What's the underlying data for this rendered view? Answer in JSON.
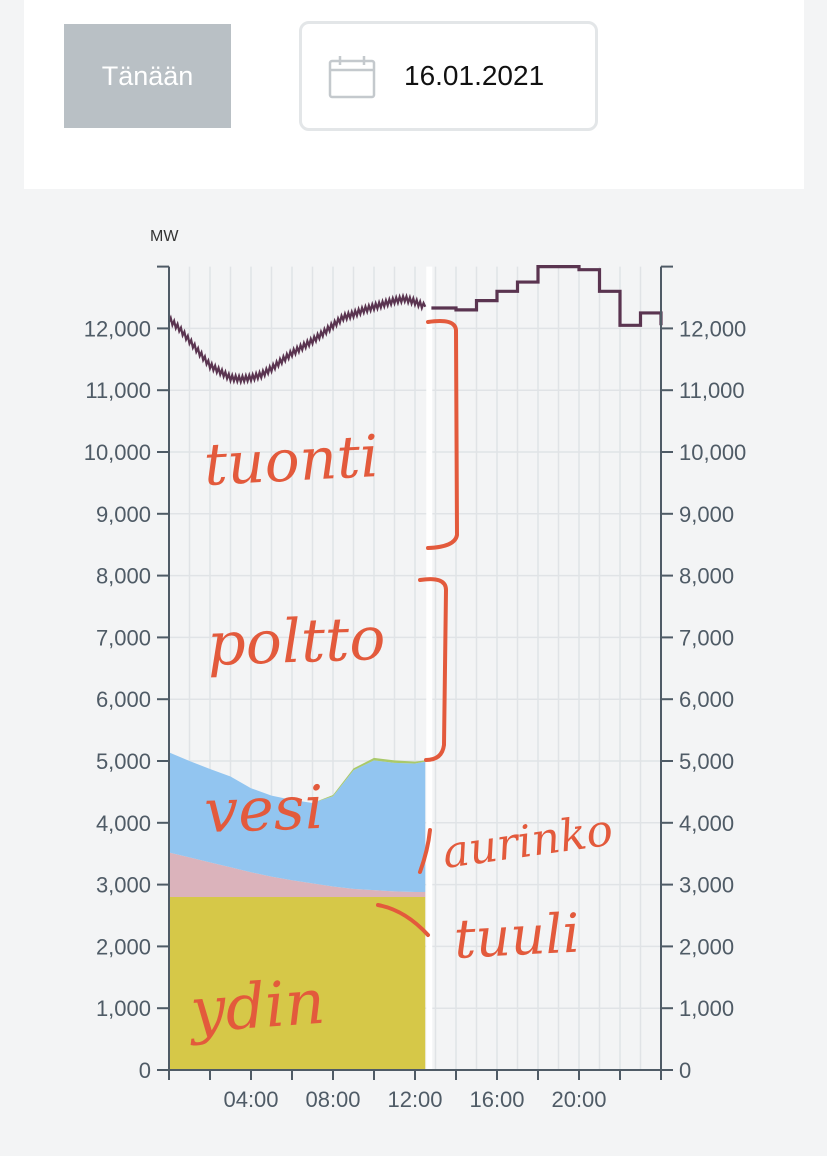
{
  "header": {
    "today_label": "Tänään",
    "date_value": "16.01.2021",
    "calendar_icon": "calendar-icon"
  },
  "colors": {
    "background": "#f3f4f5",
    "consumption_line": "#5a3450",
    "nuclear": "#d6c848",
    "other": "#dbb3bb",
    "hydro": "#92c5f0",
    "annotation": "#e35a3c"
  },
  "chart_data": {
    "type": "area",
    "unit_label": "MW",
    "x_ticks": [
      "04:00",
      "08:00",
      "12:00",
      "16:00",
      "20:00"
    ],
    "y_ticks": [
      "0",
      "1,000",
      "2,000",
      "3,000",
      "4,000",
      "5,000",
      "6,000",
      "7,000",
      "8,000",
      "9,000",
      "10,000",
      "11,000",
      "12,000"
    ],
    "ylim": [
      0,
      13000
    ],
    "xlim_hours": [
      0,
      24
    ],
    "grid": true,
    "stacked_areas": {
      "x_hours": [
        0,
        1,
        2,
        3,
        4,
        5,
        6,
        7,
        8,
        9,
        10,
        11,
        12,
        12.5
      ],
      "series": [
        {
          "key": "nuclear",
          "values": [
            2800,
            2800,
            2800,
            2800,
            2800,
            2800,
            2800,
            2800,
            2800,
            2800,
            2800,
            2800,
            2800,
            2800
          ]
        },
        {
          "key": "other",
          "values": [
            720,
            640,
            560,
            480,
            400,
            330,
            270,
            220,
            170,
            130,
            110,
            90,
            80,
            80
          ]
        },
        {
          "key": "hydro",
          "values": [
            1620,
            1560,
            1510,
            1470,
            1360,
            1310,
            1300,
            1300,
            1460,
            1920,
            2100,
            2080,
            2080,
            2110
          ]
        },
        {
          "key": "small",
          "values": [
            0,
            0,
            0,
            0,
            0,
            0,
            0,
            0,
            20,
            30,
            40,
            40,
            30,
            20
          ]
        }
      ]
    },
    "consumption": {
      "x_hours": [
        0,
        0.5,
        1,
        1.5,
        2,
        2.5,
        3,
        3.5,
        4,
        4.5,
        5,
        5.5,
        6,
        6.5,
        7,
        7.5,
        8,
        8.5,
        9,
        9.5,
        10,
        10.5,
        11,
        11.5,
        12,
        12.5
      ],
      "values": [
        12150,
        12000,
        11800,
        11600,
        11400,
        11300,
        11200,
        11180,
        11200,
        11250,
        11350,
        11480,
        11600,
        11700,
        11800,
        11920,
        12050,
        12180,
        12230,
        12300,
        12350,
        12400,
        12450,
        12480,
        12430,
        12350
      ]
    },
    "forecast": {
      "x_hours": [
        12.8,
        13,
        14,
        15,
        16,
        17,
        18,
        19,
        20,
        21,
        22,
        23,
        24
      ],
      "values": [
        12330,
        12330,
        12300,
        12450,
        12600,
        12750,
        13000,
        13000,
        12950,
        12600,
        12050,
        12250,
        12050
      ]
    },
    "annotations": [
      "tuonti",
      "poltto",
      "vesi",
      "aurinko",
      "tuuli",
      "ydin"
    ]
  }
}
